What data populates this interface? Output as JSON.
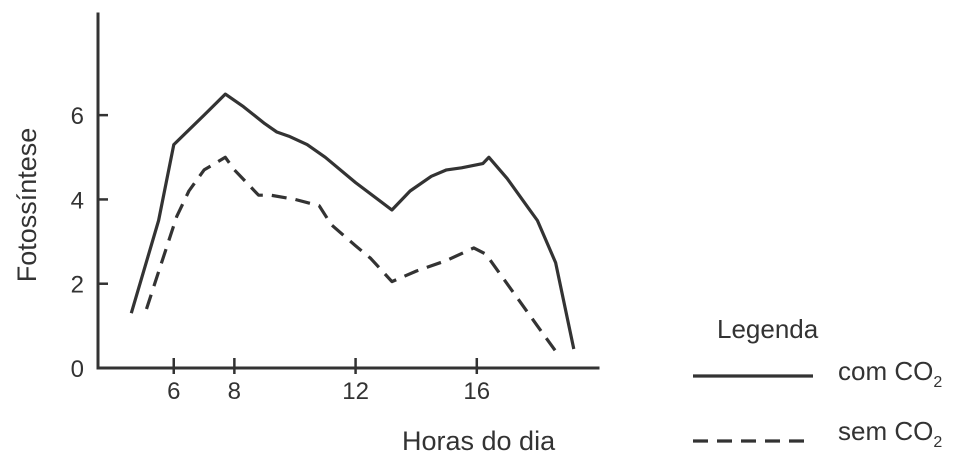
{
  "chart_data": {
    "type": "line",
    "title": "",
    "xlabel": "Horas do dia",
    "ylabel": "Fotossíntese",
    "xlim": [
      3.5,
      20
    ],
    "ylim": [
      0,
      8.4
    ],
    "xticks": [
      6,
      8,
      12,
      16
    ],
    "yticks": [
      0,
      2,
      4,
      6
    ],
    "grid": false,
    "legend": {
      "title": "Legenda",
      "placement": "bottom-right",
      "entries": [
        {
          "text": "com CO",
          "subscript": "2",
          "style": "solid"
        },
        {
          "text": "sem CO",
          "subscript": "2",
          "style": "dashed"
        }
      ]
    },
    "series": [
      {
        "style": "solid",
        "x": [
          4.6,
          5.5,
          6.0,
          7.0,
          7.7,
          8.3,
          9.0,
          9.4,
          9.8,
          10.4,
          11.0,
          12.0,
          13.2,
          13.8,
          14.5,
          15.0,
          15.5,
          16.2,
          16.4,
          17.0,
          17.7,
          18.0,
          18.6,
          19.2
        ],
        "values": [
          1.3,
          3.5,
          5.3,
          6.0,
          6.5,
          6.2,
          5.8,
          5.6,
          5.5,
          5.3,
          5.0,
          4.4,
          3.75,
          4.2,
          4.55,
          4.7,
          4.75,
          4.85,
          5.0,
          4.5,
          3.8,
          3.5,
          2.5,
          0.45
        ]
      },
      {
        "style": "dashed",
        "x": [
          5.1,
          5.6,
          6.1,
          6.5,
          7.0,
          7.7,
          8.0,
          8.8,
          9.2,
          10.0,
          10.8,
          11.2,
          12.0,
          12.5,
          13.2,
          14.0,
          15.0,
          15.9,
          16.3,
          17.3,
          18.0,
          18.6
        ],
        "values": [
          1.4,
          2.5,
          3.6,
          4.2,
          4.7,
          5.0,
          4.7,
          4.1,
          4.1,
          4.0,
          3.85,
          3.4,
          2.9,
          2.6,
          2.05,
          2.3,
          2.55,
          2.85,
          2.7,
          1.7,
          1.0,
          0.4
        ]
      }
    ]
  }
}
